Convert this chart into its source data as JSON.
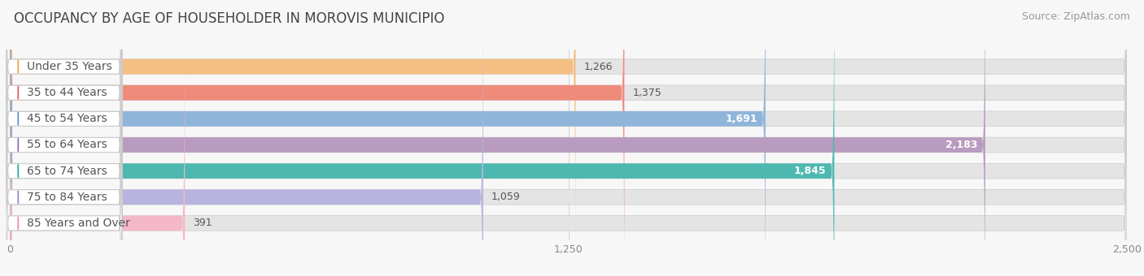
{
  "title": "OCCUPANCY BY AGE OF HOUSEHOLDER IN MOROVIS MUNICIPIO",
  "source": "Source: ZipAtlas.com",
  "categories": [
    "Under 35 Years",
    "35 to 44 Years",
    "45 to 54 Years",
    "55 to 64 Years",
    "65 to 74 Years",
    "75 to 84 Years",
    "85 Years and Over"
  ],
  "values": [
    1266,
    1375,
    1691,
    2183,
    1845,
    1059,
    391
  ],
  "bar_colors": [
    "#f5bf84",
    "#ef8b7b",
    "#8fb5da",
    "#b89bbf",
    "#4db8b0",
    "#b8b4e0",
    "#f5b8c8"
  ],
  "dot_colors": [
    "#f0a050",
    "#e06060",
    "#6090d0",
    "#9070b0",
    "#2aa8a0",
    "#9090c8",
    "#f090a8"
  ],
  "label_colors_outside": [
    "#888888",
    "#888888",
    "#888888",
    "#888888",
    "#888888",
    "#888888",
    "#888888"
  ],
  "value_label_colors": [
    "#888888",
    "#888888",
    "#ffffff",
    "#ffffff",
    "#ffffff",
    "#888888",
    "#888888"
  ],
  "xlim": [
    0,
    2500
  ],
  "xticks": [
    0,
    1250,
    2500
  ],
  "xtick_labels": [
    "0",
    "1,250",
    "2,500"
  ],
  "bg_color": "#f7f7f7",
  "bar_bg_color": "#e4e4e4",
  "title_fontsize": 12,
  "source_fontsize": 9,
  "bar_height": 0.58,
  "value_fontsize": 9,
  "label_fontsize": 10
}
